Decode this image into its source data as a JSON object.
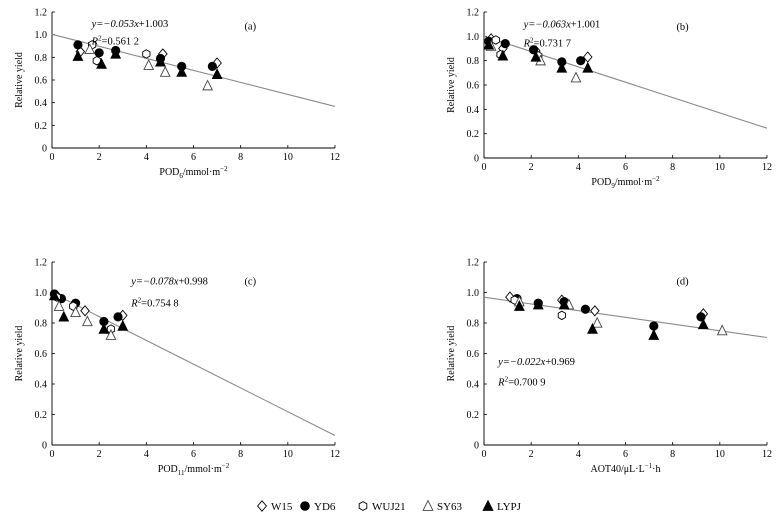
{
  "legend": {
    "entries": [
      {
        "label": "W15",
        "marker": "diamond-open"
      },
      {
        "label": "YD6",
        "marker": "circle-filled"
      },
      {
        "label": "WUJ21",
        "marker": "hexagon-open"
      },
      {
        "label": "SY63",
        "marker": "triangle-open"
      },
      {
        "label": "LYPJ",
        "marker": "triangle-filled"
      }
    ]
  },
  "chart_data": [
    {
      "type": "scatter",
      "panel_label": "(a)",
      "xlabel": "POD",
      "xlabel_sub": "6",
      "xlabel_unit": "/mmol·m",
      "xlabel_sup": "−2",
      "ylabel": "Relative yield",
      "xlim": [
        0,
        12
      ],
      "ylim": [
        0,
        1.2
      ],
      "xticks": [
        0,
        2,
        4,
        6,
        8,
        10,
        12
      ],
      "yticks": [
        0,
        0.2,
        0.4,
        0.6,
        0.8,
        1.0,
        1.2
      ],
      "equation": {
        "a": "y=−0.053",
        "x": "x",
        "b": "+1.003"
      },
      "r2": {
        "r": "R",
        "sup": "2",
        "val": "=0.561 2"
      },
      "annotation_position": "top-left",
      "fit": {
        "slope": -0.053,
        "intercept": 1.003,
        "x_range": [
          0,
          12
        ]
      },
      "series": [
        {
          "name": "W15",
          "marker": "diamond-open",
          "points": [
            [
              1.2,
              0.85
            ],
            [
              4.7,
              0.83
            ],
            [
              7.0,
              0.75
            ]
          ]
        },
        {
          "name": "YD6",
          "marker": "circle-filled",
          "points": [
            [
              1.1,
              0.91
            ],
            [
              2.0,
              0.84
            ],
            [
              2.7,
              0.86
            ],
            [
              4.6,
              0.79
            ],
            [
              5.5,
              0.72
            ],
            [
              6.8,
              0.72
            ]
          ]
        },
        {
          "name": "WUJ21",
          "marker": "hexagon-open",
          "points": [
            [
              1.7,
              0.91
            ],
            [
              1.9,
              0.77
            ],
            [
              4.0,
              0.83
            ]
          ]
        },
        {
          "name": "SY63",
          "marker": "triangle-open",
          "points": [
            [
              1.6,
              0.87
            ],
            [
              4.1,
              0.73
            ],
            [
              4.8,
              0.67
            ],
            [
              6.6,
              0.55
            ]
          ]
        },
        {
          "name": "LYPJ",
          "marker": "triangle-filled",
          "points": [
            [
              1.1,
              0.81
            ],
            [
              2.1,
              0.74
            ],
            [
              2.7,
              0.83
            ],
            [
              4.6,
              0.76
            ],
            [
              5.5,
              0.67
            ],
            [
              7.0,
              0.65
            ]
          ]
        }
      ]
    },
    {
      "type": "scatter",
      "panel_label": "(b)",
      "xlabel": "POD",
      "xlabel_sub": "9",
      "xlabel_unit": "/mmol·m",
      "xlabel_sup": "−2",
      "ylabel": "Relative yield",
      "xlim": [
        0,
        12
      ],
      "ylim": [
        0,
        1.2
      ],
      "xticks": [
        0,
        2,
        4,
        6,
        8,
        10,
        12
      ],
      "yticks": [
        0,
        0.2,
        0.4,
        0.6,
        0.8,
        1.0,
        1.2
      ],
      "equation": {
        "a": "y=−0.063",
        "x": "x",
        "b": "+1.001"
      },
      "r2": {
        "r": "R",
        "sup": "2",
        "val": "=0.731 7"
      },
      "annotation_position": "top-left",
      "fit": {
        "slope": -0.063,
        "intercept": 1.001,
        "x_range": [
          0,
          12
        ]
      },
      "series": [
        {
          "name": "W15",
          "marker": "diamond-open",
          "points": [
            [
              0.3,
              0.98
            ],
            [
              0.8,
              0.9
            ],
            [
              2.2,
              0.88
            ],
            [
              4.4,
              0.83
            ]
          ]
        },
        {
          "name": "YD6",
          "marker": "circle-filled",
          "points": [
            [
              0.2,
              0.96
            ],
            [
              0.9,
              0.94
            ],
            [
              2.1,
              0.89
            ],
            [
              3.3,
              0.79
            ],
            [
              4.1,
              0.8
            ]
          ]
        },
        {
          "name": "WUJ21",
          "marker": "hexagon-open",
          "points": [
            [
              0.5,
              0.97
            ],
            [
              0.7,
              0.85
            ],
            [
              2.3,
              0.84
            ]
          ]
        },
        {
          "name": "SY63",
          "marker": "triangle-open",
          "points": [
            [
              0.3,
              0.92
            ],
            [
              2.4,
              0.8
            ],
            [
              3.9,
              0.66
            ]
          ]
        },
        {
          "name": "LYPJ",
          "marker": "triangle-filled",
          "points": [
            [
              0.2,
              0.93
            ],
            [
              0.8,
              0.84
            ],
            [
              2.2,
              0.83
            ],
            [
              3.3,
              0.74
            ],
            [
              4.4,
              0.74
            ]
          ]
        }
      ]
    },
    {
      "type": "scatter",
      "panel_label": "(c)",
      "xlabel": "POD",
      "xlabel_sub": "11",
      "xlabel_unit": "/mmol·m",
      "xlabel_sup": "−2",
      "ylabel": "Relative yield",
      "xlim": [
        0,
        12
      ],
      "ylim": [
        0,
        1.2
      ],
      "xticks": [
        0,
        2,
        4,
        6,
        8,
        10,
        12
      ],
      "yticks": [
        0,
        0.2,
        0.4,
        0.6,
        0.8,
        1.0,
        1.2
      ],
      "equation": {
        "a": "y=−0.078",
        "x": "x",
        "b": "+0.998"
      },
      "r2": {
        "r": "R",
        "sup": "2",
        "val": "=0.754 8"
      },
      "annotation_position": "top-center",
      "fit": {
        "slope": -0.078,
        "intercept": 0.998,
        "x_range": [
          0,
          12
        ]
      },
      "series": [
        {
          "name": "W15",
          "marker": "diamond-open",
          "points": [
            [
              0.2,
              0.98
            ],
            [
              1.4,
              0.88
            ],
            [
              3.0,
              0.85
            ]
          ]
        },
        {
          "name": "YD6",
          "marker": "circle-filled",
          "points": [
            [
              0.1,
              0.99
            ],
            [
              0.4,
              0.96
            ],
            [
              1.0,
              0.93
            ],
            [
              2.2,
              0.81
            ],
            [
              2.8,
              0.84
            ]
          ]
        },
        {
          "name": "WUJ21",
          "marker": "hexagon-open",
          "points": [
            [
              0.2,
              0.97
            ],
            [
              0.9,
              0.91
            ],
            [
              2.5,
              0.76
            ]
          ]
        },
        {
          "name": "SY63",
          "marker": "triangle-open",
          "points": [
            [
              0.3,
              0.91
            ],
            [
              1.0,
              0.87
            ],
            [
              1.5,
              0.81
            ],
            [
              2.5,
              0.72
            ]
          ]
        },
        {
          "name": "LYPJ",
          "marker": "triangle-filled",
          "points": [
            [
              0.1,
              0.98
            ],
            [
              0.5,
              0.84
            ],
            [
              2.2,
              0.76
            ],
            [
              3.0,
              0.78
            ]
          ]
        }
      ]
    },
    {
      "type": "scatter",
      "panel_label": "(d)",
      "xlabel": "AOT40/μL·L",
      "xlabel_sup1": "−1",
      "xlabel_mid": "·h",
      "ylabel": "Relative yield",
      "xlim": [
        0,
        12
      ],
      "ylim": [
        0,
        1.2
      ],
      "xticks": [
        0,
        2,
        4,
        6,
        8,
        10,
        12
      ],
      "yticks": [
        0,
        0.2,
        0.4,
        0.6,
        0.8,
        1.0,
        1.2
      ],
      "equation": {
        "a": "y=−0.022",
        "x": "x",
        "b": "+0.969"
      },
      "r2": {
        "r": "R",
        "sup": "2",
        "val": "=0.700 9"
      },
      "annotation_position": "middle-left",
      "fit": {
        "slope": -0.022,
        "intercept": 0.969,
        "x_range": [
          0,
          12
        ]
      },
      "series": [
        {
          "name": "W15",
          "marker": "diamond-open",
          "points": [
            [
              1.1,
              0.97
            ],
            [
              3.3,
              0.95
            ],
            [
              4.7,
              0.88
            ],
            [
              9.3,
              0.86
            ]
          ]
        },
        {
          "name": "YD6",
          "marker": "circle-filled",
          "points": [
            [
              1.4,
              0.96
            ],
            [
              2.3,
              0.93
            ],
            [
              3.4,
              0.94
            ],
            [
              4.3,
              0.89
            ],
            [
              7.2,
              0.78
            ],
            [
              9.2,
              0.84
            ]
          ]
        },
        {
          "name": "WUJ21",
          "marker": "hexagon-open",
          "points": [
            [
              1.3,
              0.95
            ],
            [
              3.3,
              0.85
            ]
          ]
        },
        {
          "name": "SY63",
          "marker": "triangle-open",
          "points": [
            [
              1.5,
              0.94
            ],
            [
              3.6,
              0.92
            ],
            [
              4.8,
              0.8
            ],
            [
              10.1,
              0.75
            ]
          ]
        },
        {
          "name": "LYPJ",
          "marker": "triangle-filled",
          "points": [
            [
              1.5,
              0.91
            ],
            [
              2.3,
              0.92
            ],
            [
              3.4,
              0.92
            ],
            [
              4.6,
              0.76
            ],
            [
              7.2,
              0.72
            ],
            [
              9.3,
              0.79
            ]
          ]
        }
      ]
    }
  ]
}
